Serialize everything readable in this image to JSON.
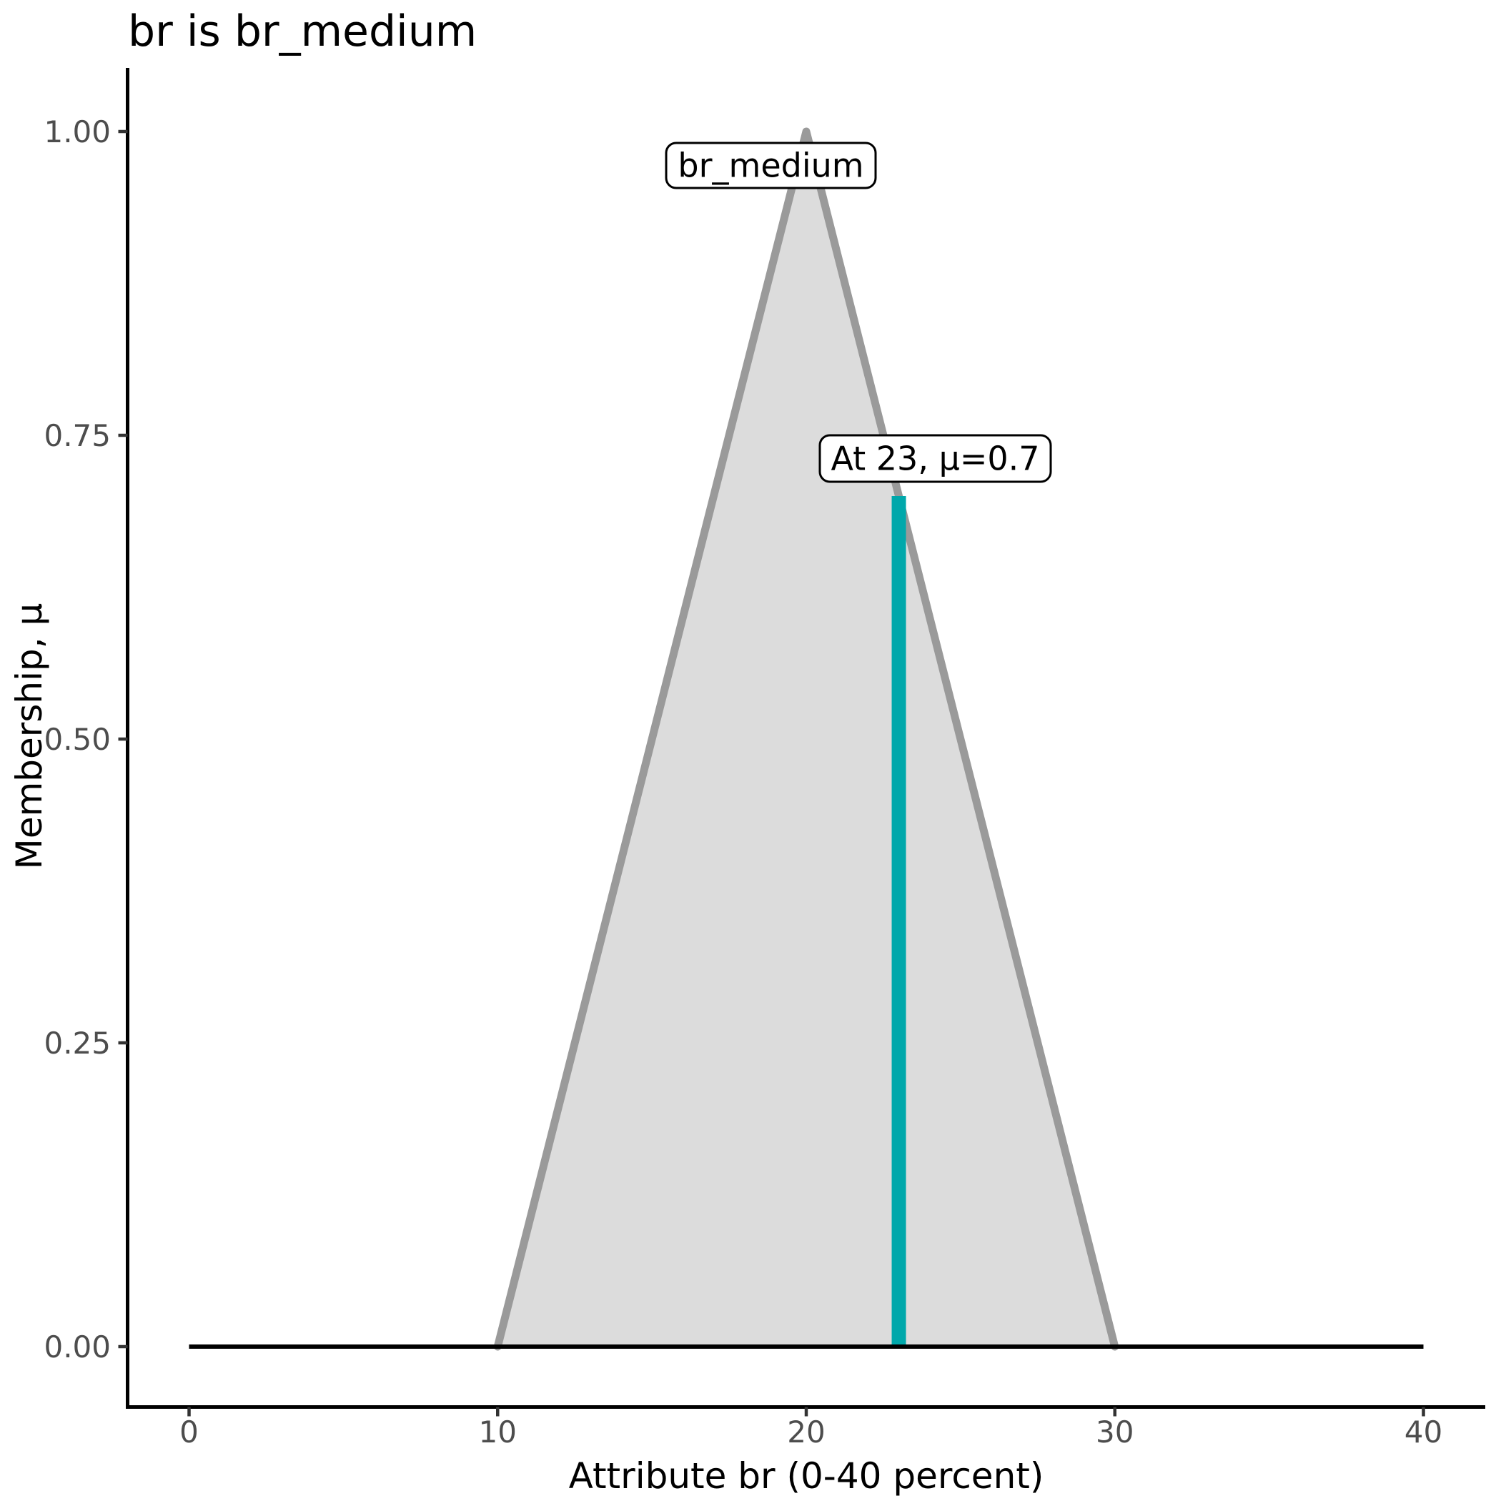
{
  "chart_data": {
    "type": "area",
    "title": "br is br_medium",
    "xlabel": "Attribute br (0-40 percent)",
    "ylabel": "Membership, μ",
    "xlim": [
      0,
      40
    ],
    "ylim": [
      0,
      1
    ],
    "x_ticks": [
      0,
      10,
      20,
      30,
      40
    ],
    "xtick_labels": [
      "0",
      "10",
      "20",
      "30",
      "40"
    ],
    "y_ticks": [
      0,
      0.25,
      0.5,
      0.75,
      1
    ],
    "ytick_labels": [
      "0.00",
      "0.25",
      "0.50",
      "0.75",
      "1.00"
    ],
    "grid": false,
    "legend_position": "none",
    "series": [
      {
        "name": "br_medium",
        "mf_type": "triangular",
        "mf_params": {
          "left": 10,
          "peak": 20,
          "right": 30
        },
        "shape_points": [
          [
            10,
            0
          ],
          [
            20,
            1
          ],
          [
            30,
            0
          ]
        ],
        "fill_color": "#DCDCDC",
        "stroke_color": "#9A9A9A"
      }
    ],
    "baseline": {
      "mu": 0,
      "x_from": 0,
      "x_to": 40,
      "color": "#000000"
    },
    "annotations": {
      "set_label": "br_medium",
      "crisp_label": "At 23, μ=0.7",
      "crisp_input": {
        "x": 23,
        "mu": 0.7
      },
      "crisp_line_color": "#00A8AB"
    }
  },
  "colors": {
    "background": "#FFFFFF",
    "axis_line": "#000000",
    "tick_mark": "#333333",
    "tick_label": "#4D4D4D",
    "title_text": "#000000"
  }
}
